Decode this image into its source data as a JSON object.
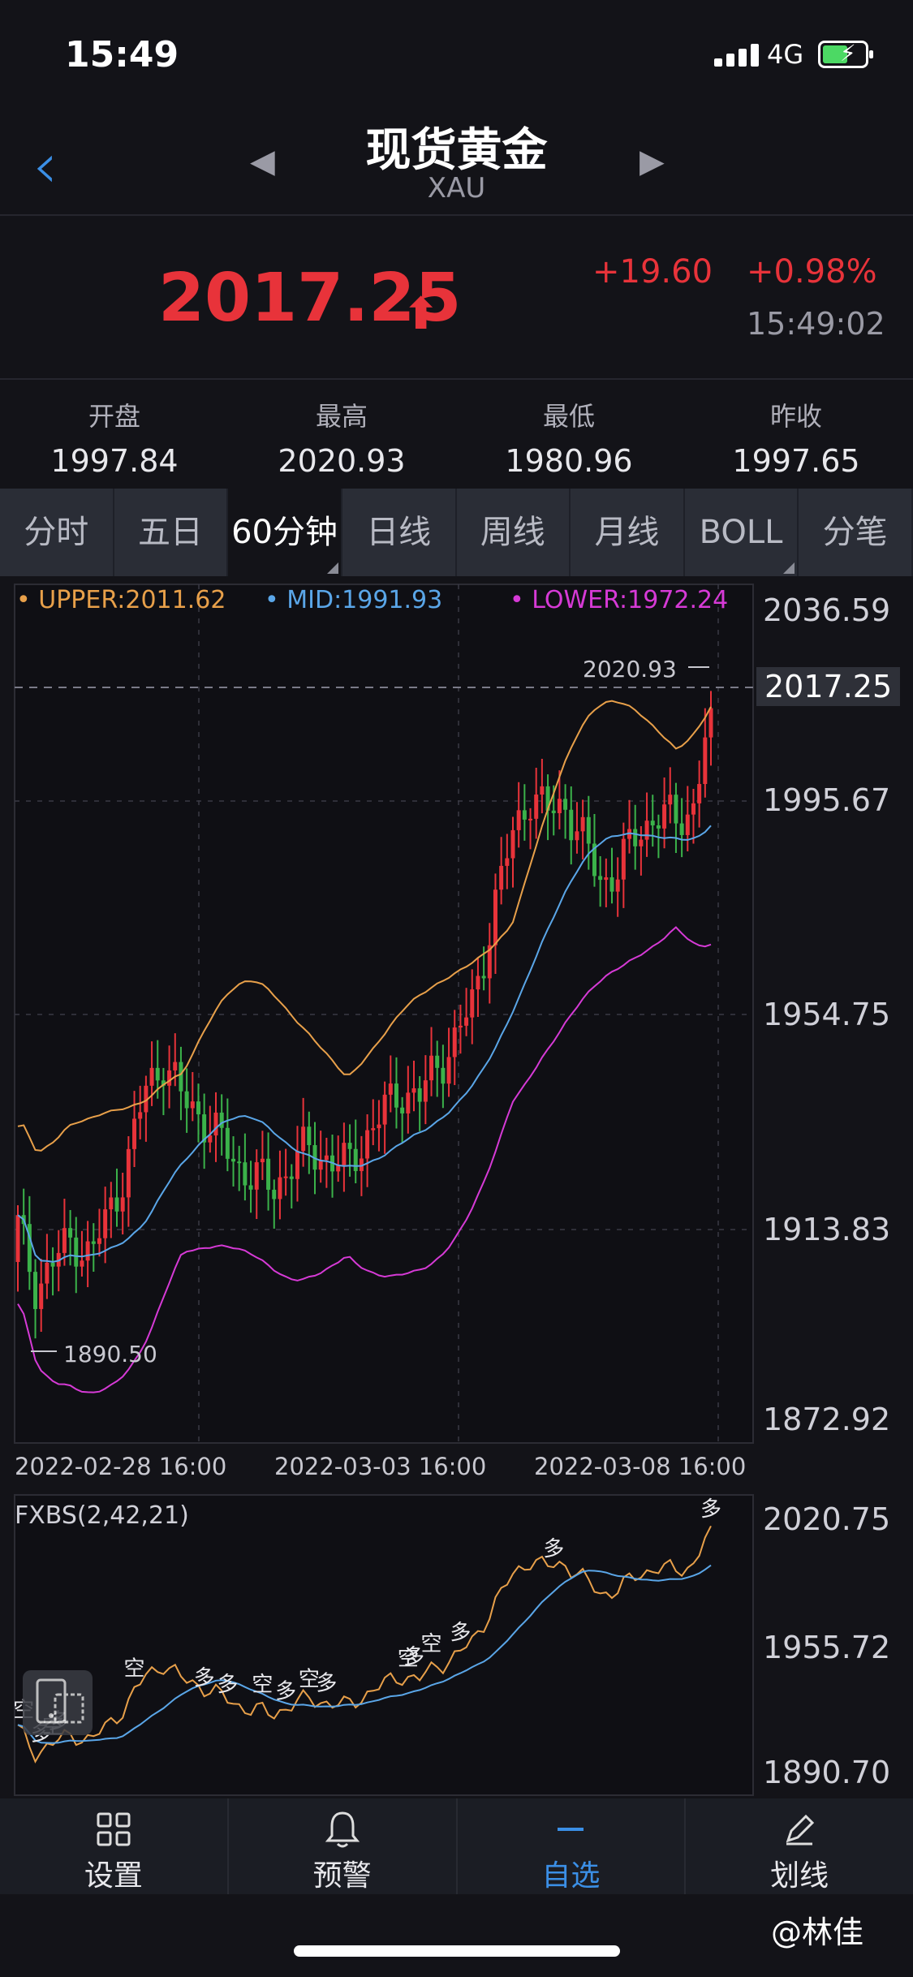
{
  "status": {
    "time": "15:49",
    "network": "4G"
  },
  "header": {
    "title": "现货黄金",
    "subtitle": "XAU"
  },
  "quote": {
    "price": "2017.25",
    "change": "+19.60",
    "change_pct": "+0.98%",
    "time": "15:49:02",
    "color_up": "#e8333a"
  },
  "stats": [
    {
      "label": "开盘",
      "value": "1997.84"
    },
    {
      "label": "最高",
      "value": "2020.93"
    },
    {
      "label": "最低",
      "value": "1980.96"
    },
    {
      "label": "昨收",
      "value": "1997.65"
    }
  ],
  "tabs": [
    {
      "label": "分时",
      "active": false
    },
    {
      "label": "五日",
      "active": false
    },
    {
      "label": "60分钟",
      "active": true
    },
    {
      "label": "日线",
      "active": false
    },
    {
      "label": "周线",
      "active": false
    },
    {
      "label": "月线",
      "active": false
    },
    {
      "label": "BOLL",
      "active": false
    },
    {
      "label": "分笔",
      "active": false
    }
  ],
  "main_chart": {
    "legend": {
      "upper": "UPPER:2011.62",
      "mid": "MID:1991.93",
      "lower": "LOWER:1972.24"
    },
    "y_labels": [
      "2036.59",
      "2017.25",
      "1995.67",
      "1954.75",
      "1913.83",
      "1872.92"
    ],
    "high_marker": "2020.93",
    "low_marker": "1890.50",
    "x_labels": [
      "2022-02-28 16:00",
      "2022-03-03 16:00",
      "2022-03-08 16:00"
    ]
  },
  "sub_chart": {
    "title": "FXBS(2,42,21)",
    "y_labels": [
      "2020.75",
      "1955.72",
      "1890.70"
    ],
    "signals": [
      "空",
      "多"
    ]
  },
  "chart_data": {
    "type": "candlestick",
    "title": "",
    "xlabel": "",
    "ylabel": "",
    "ylim": [
      1872.92,
      2036.59
    ],
    "x_ticks": [
      "2022-02-28 16:00",
      "2022-03-03 16:00",
      "2022-03-08 16:00"
    ],
    "last_price": 2017.25,
    "high": 2020.93,
    "low": 1890.5,
    "indicators": {
      "BOLL_upper_last": 2011.62,
      "BOLL_mid_last": 1991.93,
      "BOLL_lower_last": 1972.24
    },
    "close_path_approx": [
      1912,
      1900,
      1905,
      1910,
      1906,
      1915,
      1925,
      1940,
      1946,
      1938,
      1935,
      1930,
      1925,
      1922,
      1920,
      1925,
      1928,
      1926,
      1924,
      1930,
      1935,
      1940,
      1938,
      1945,
      1950,
      1958,
      1975,
      1990,
      2000,
      1996,
      1998,
      1990,
      1982,
      1985,
      1992,
      1996,
      1994,
      1997,
      2017
    ],
    "grid": true
  },
  "colors": {
    "upper": "#e8a04a",
    "mid": "#5aa6e8",
    "lower": "#d63ad6",
    "up": "#e8333a",
    "down": "#3bb24a"
  },
  "bottom_nav": [
    {
      "label": "设置",
      "icon": "grid-icon",
      "active": false
    },
    {
      "label": "预警",
      "icon": "bell-icon",
      "active": false
    },
    {
      "label": "自选",
      "icon": "minus-icon",
      "active": true
    },
    {
      "label": "划线",
      "icon": "pen-icon",
      "active": false
    }
  ],
  "watermark": "@林佳"
}
